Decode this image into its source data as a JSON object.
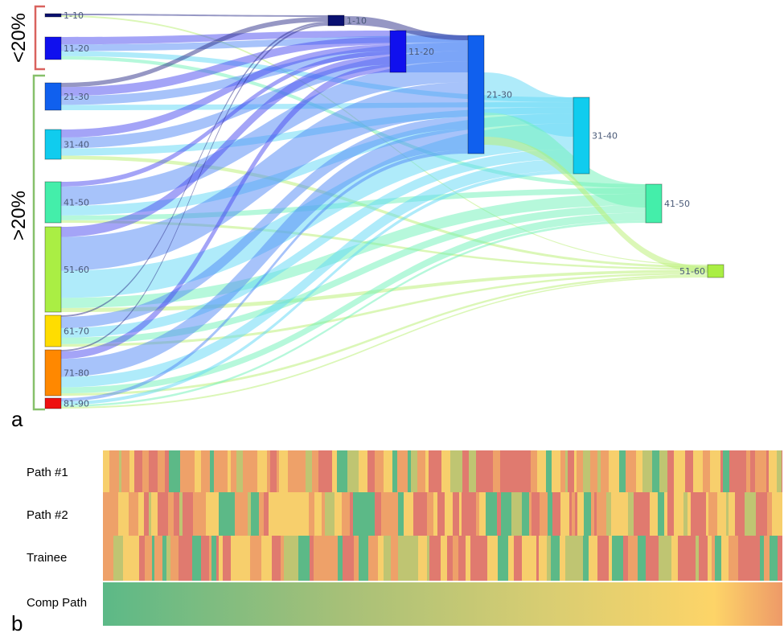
{
  "panel_a": {
    "letter": "a",
    "bracket_low_label": "<20%",
    "bracket_high_label": ">20%",
    "bracket_low_color": "#d9625e",
    "bracket_high_color": "#86c06a",
    "stages": [
      {
        "nodes": [
          {
            "label": "1-10",
            "color": "#0a1070",
            "value": 1
          },
          {
            "label": "11-20",
            "color": "#1010ee",
            "value": 7
          },
          {
            "label": "21-30",
            "color": "#1060ee",
            "value": 8
          },
          {
            "label": "31-40",
            "color": "#10ccee",
            "value": 9
          },
          {
            "label": "41-50",
            "color": "#44eeaa",
            "value": 13
          },
          {
            "label": "51-60",
            "color": "#aaee44",
            "value": 27
          },
          {
            "label": "61-70",
            "color": "#ffdd00",
            "value": 10
          },
          {
            "label": "71-80",
            "color": "#ff8800",
            "value": 15
          },
          {
            "label": "81-90",
            "color": "#ee1010",
            "value": 3
          }
        ]
      },
      {
        "nodes": [
          {
            "label": "1-10",
            "color": "#0a1070",
            "value": 3
          },
          {
            "label": "11-20",
            "color": "#1010ee",
            "value": 13
          }
        ]
      },
      {
        "nodes": [
          {
            "label": "21-30",
            "color": "#1060ee",
            "value": 37
          }
        ]
      },
      {
        "nodes": [
          {
            "label": "31-40",
            "color": "#10ccee",
            "value": 24
          },
          {
            "label": "41-50",
            "color": "#44eeaa",
            "value": 12
          },
          {
            "label": "51-60",
            "color": "#aaee44",
            "value": 4
          }
        ]
      }
    ]
  },
  "panel_b": {
    "letter": "b",
    "rows": [
      {
        "label": "Path #1"
      },
      {
        "label": "Path #2"
      },
      {
        "label": "Trainee"
      },
      {
        "label": "Comp Path"
      }
    ],
    "palette": [
      "#e07a6f",
      "#eea169",
      "#f7cf6c",
      "#bfc572",
      "#5cb987"
    ]
  }
}
